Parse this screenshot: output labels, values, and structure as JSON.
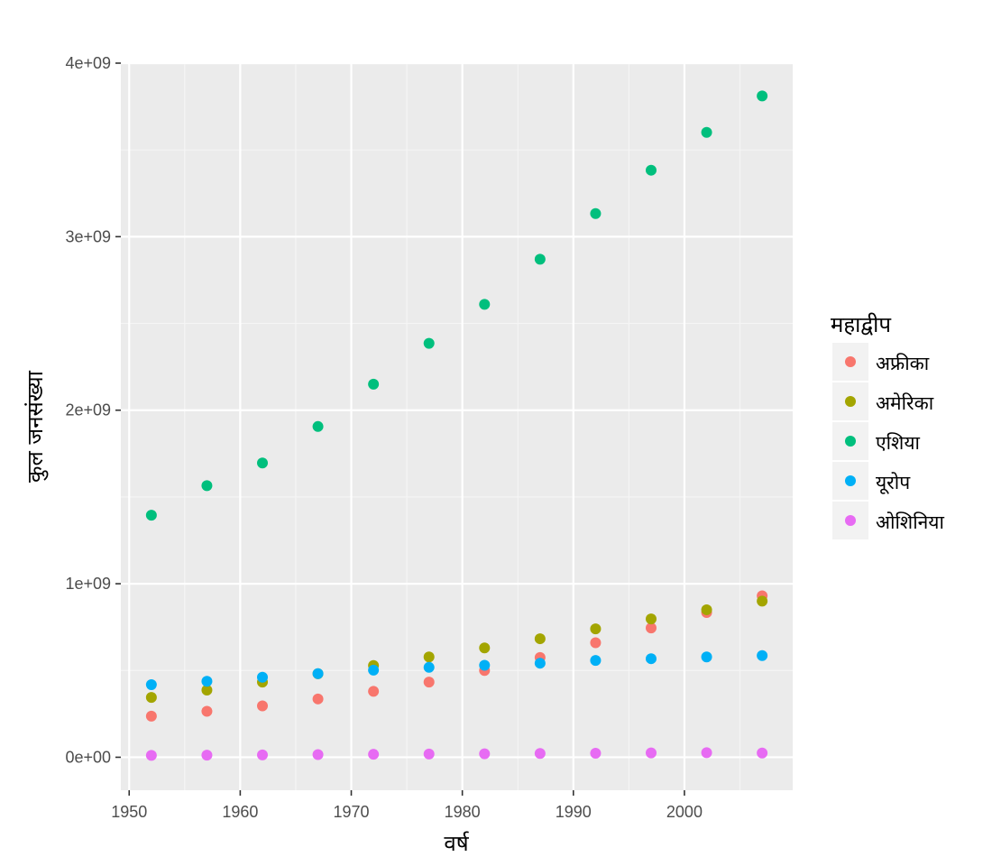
{
  "chart_data": {
    "type": "scatter",
    "title": "",
    "xlabel": "वर्ष",
    "ylabel": "कुल जनसंख्या",
    "xlim": [
      1949.25,
      2009.75
    ],
    "ylim": [
      -190000000,
      4000000000
    ],
    "x_ticks": [
      1950,
      1960,
      1970,
      1980,
      1990,
      2000
    ],
    "x_tick_labels": [
      "1950",
      "1960",
      "1970",
      "1980",
      "1990",
      "2000"
    ],
    "y_ticks": [
      0,
      1000000000,
      2000000000,
      3000000000,
      4000000000
    ],
    "y_tick_labels": [
      "0e+00",
      "1e+09",
      "2e+09",
      "3e+09",
      "4e+09"
    ],
    "grid": true,
    "legend_title": "महाद्वीप",
    "legend_position": "right",
    "x": [
      1952,
      1957,
      1962,
      1967,
      1972,
      1977,
      1982,
      1987,
      1992,
      1997,
      2002,
      2007
    ],
    "series": [
      {
        "name": "अफ्रीका",
        "color": "#F8766D",
        "values": [
          237000000,
          265000000,
          296000000,
          336000000,
          380000000,
          433000000,
          500000000,
          575000000,
          660000000,
          745000000,
          834000000,
          930000000
        ]
      },
      {
        "name": "अमेरिका",
        "color": "#A3A500",
        "values": [
          345000000,
          387000000,
          433000000,
          481000000,
          529000000,
          578000000,
          630000000,
          683000000,
          740000000,
          797000000,
          850000000,
          900000000
        ]
      },
      {
        "name": "एशिया",
        "color": "#00BF7D",
        "values": [
          1395000000,
          1565000000,
          1696000000,
          1906000000,
          2150000000,
          2385000000,
          2610000000,
          2870000000,
          3133000000,
          3383000000,
          3601000000,
          3811000000
        ]
      },
      {
        "name": "यूरोप",
        "color": "#00B0F6",
        "values": [
          418000000,
          438000000,
          461000000,
          482000000,
          502000000,
          518000000,
          530000000,
          542000000,
          558000000,
          568000000,
          578000000,
          586000000
        ]
      },
      {
        "name": "ओशिनिया",
        "color": "#E76BF3",
        "values": [
          10700000,
          11900000,
          13500000,
          15200000,
          17000000,
          18500000,
          20000000,
          21600000,
          23400000,
          25000000,
          26500000,
          24500000
        ]
      }
    ]
  }
}
